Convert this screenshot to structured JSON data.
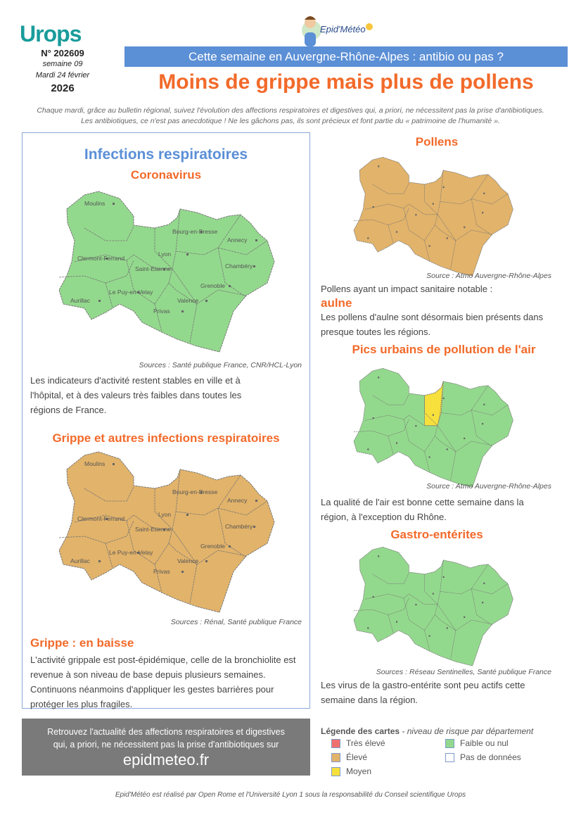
{
  "header": {
    "urops_logo": "Urops",
    "epid_logo": "Epid'Météo",
    "issue": "N° 202609",
    "week": "semaine 09",
    "date": "Mardi 24 février",
    "year": "2026",
    "banner": "Cette semaine en Auvergne-Rhône-Alpes : antibio ou pas ?",
    "headline": "Moins de grippe mais plus de pollens",
    "intro1": "Chaque mardi, grâce au bulletin régional, suivez l'évolution des affections respiratoires et digestives qui, a priori, ne nécessitent pas la prise d'antibiotiques.",
    "intro2": "Les antibiotiques, ce n'est pas anecdotique ! Ne les gâchons pas, ils sont précieux et font partie du « patrimoine de l'humanité »."
  },
  "cities": [
    "Moulins",
    "Bourg-en-Bresse",
    "Annecy",
    "Clermont-Ferrand",
    "Lyon",
    "Saint-Etienne",
    "Chambéry",
    "Le Puy-en-Velay",
    "Grenoble",
    "Aurillac",
    "Valence",
    "Privas"
  ],
  "respiratory": {
    "title": "Infections respiratoires",
    "covid": {
      "title": "Coronavirus",
      "level": "Faible ou nul",
      "source": "Sources : Santé publique France, CNR/HCL-Lyon",
      "text": "Les indicateurs d'activité restent stables en ville et à l'hôpital, et à des valeurs très faibles dans toutes les régions de France."
    },
    "flu": {
      "title": "Grippe et autres infections respiratoires",
      "level": "Élevé",
      "source": "Sources : Rénal, Santé publique France",
      "subtitle": "Grippe : en baisse",
      "text": "L'activité grippale est post-épidémique, celle de la bronchiolite est revenue à son niveau de base depuis plusieurs semaines. Continuons néanmoins d'appliquer les gestes barrières pour protéger les plus fragiles."
    }
  },
  "pollens": {
    "title": "Pollens",
    "level": "Élevé",
    "source": "Source : Atmo Auvergne-Rhône-Alpes",
    "text1": "Pollens ayant un impact sanitaire notable :",
    "highlight": "aulne",
    "text2": "Les pollens d'aulne sont désormais bien présents dans presque toutes les régions."
  },
  "pollution": {
    "title": "Pics urbains de pollution de l'air",
    "level": "Faible ou nul",
    "exception": "Moyen",
    "source": "Source : Atmo Auvergne-Rhône-Alpes",
    "text": "La qualité de l'air est bonne cette semaine dans la région, à l'exception du Rhône."
  },
  "gastro": {
    "title": "Gastro-entérites",
    "level": "Faible ou nul",
    "source": "Sources : Réseau Sentinelles, Santé publique France",
    "text": "Les virus de la gastro-entérite sont peu actifs cette semaine dans la région."
  },
  "footer": {
    "line1": "Retrouvez l'actualité des affections respiratoires et digestives",
    "line2": "qui, a priori, ne nécessitent pas la prise d'antibiotiques sur",
    "link": "epidmeteo.fr",
    "credit": "Epid'Météo est réalisé par Open Rome et l'Université Lyon 1 sous la responsabilité du Conseil scientifique Urops"
  },
  "legend": {
    "title": "Légende des cartes",
    "subtitle": " - niveau de risque par département",
    "items": [
      {
        "label": "Très élevé",
        "color": "#f07070"
      },
      {
        "label": "Élevé",
        "color": "#e2b36a"
      },
      {
        "label": "Moyen",
        "color": "#f7e03c"
      },
      {
        "label": "Faible ou nul",
        "color": "#93d98d"
      },
      {
        "label": "Pas de données",
        "color": "#ffffff"
      }
    ]
  }
}
